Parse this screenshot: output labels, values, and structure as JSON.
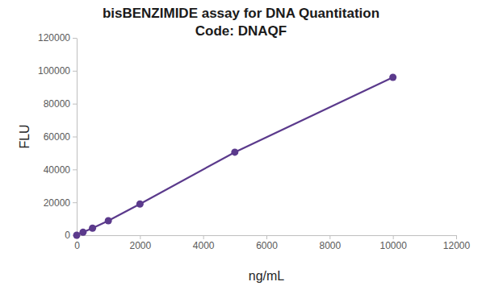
{
  "chart_data": {
    "type": "line",
    "title": "bisBENZIMIDE assay for DNA Quantitation",
    "subtitle": "Code: DNAQF",
    "x_label": "ng/mL",
    "y_label": "FLU",
    "x": [
      0,
      200,
      500,
      1000,
      2000,
      5000,
      10000
    ],
    "values": [
      0,
      1800,
      4300,
      8800,
      19000,
      50500,
      96000
    ],
    "color": "#5b3a8c",
    "marker": "circle",
    "xlim": [
      0,
      12000
    ],
    "xticks": [
      0,
      2000,
      4000,
      6000,
      8000,
      10000,
      12000
    ],
    "ylim": [
      0,
      120000
    ],
    "yticks": [
      0,
      20000,
      40000,
      60000,
      80000,
      100000,
      120000
    ],
    "grid": false
  }
}
